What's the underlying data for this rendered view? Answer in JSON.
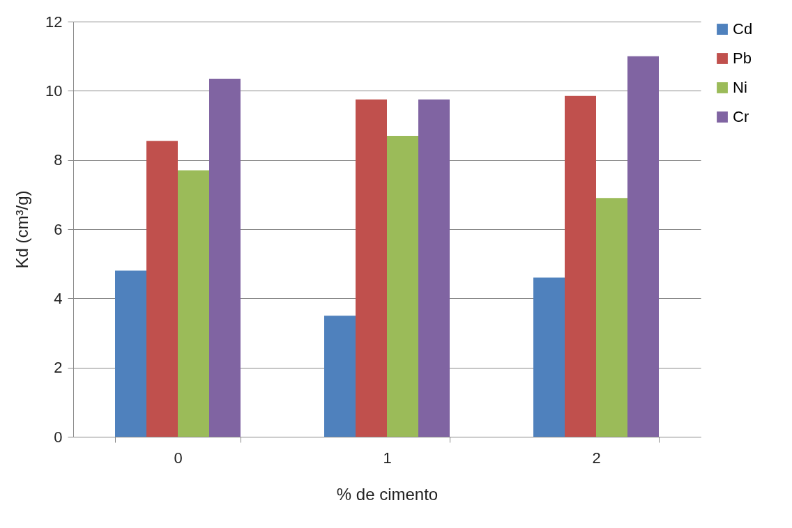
{
  "chart_data": {
    "type": "bar",
    "xlabel": "% de cimento",
    "ylabel": "Kd (cm³/g)",
    "categories": [
      "0",
      "1",
      "2"
    ],
    "series": [
      {
        "name": "Cd",
        "color": "#4f81bd",
        "values": [
          4.8,
          3.5,
          4.6
        ]
      },
      {
        "name": "Pb",
        "color": "#c0504d",
        "values": [
          8.55,
          9.75,
          9.85
        ]
      },
      {
        "name": "Ni",
        "color": "#9bbb59",
        "values": [
          7.7,
          8.7,
          6.9
        ]
      },
      {
        "name": "Cr",
        "color": "#8064a2",
        "values": [
          10.35,
          9.75,
          11.0
        ]
      }
    ],
    "ylim": [
      0,
      12
    ],
    "yticks": [
      0,
      2,
      4,
      6,
      8,
      10,
      12
    ],
    "grid": "y",
    "legend": "right"
  }
}
